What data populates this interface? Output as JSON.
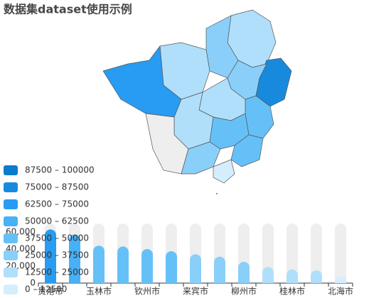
{
  "chart_data": {
    "type": "bar",
    "title": "数据集dataset使用示例",
    "categories": [
      "贵港市",
      null,
      "玉林市",
      null,
      "钦州市",
      null,
      "来宾市",
      null,
      "柳州市",
      null,
      "桂林市",
      null,
      "北海市"
    ],
    "values": [
      63000,
      57000,
      44000,
      43000,
      40000,
      37500,
      34000,
      31000,
      25000,
      19000,
      16000,
      15000,
      7500
    ],
    "ylim": [
      0,
      70000
    ],
    "yticks": [
      0,
      {
        "value": 20000,
        "label": "20,000"
      },
      {
        "value": 40000,
        "label": "40,000"
      },
      {
        "value": 60000,
        "label": "60,000"
      }
    ],
    "background_bar_color": "#eeeeee",
    "visual_map": [
      {
        "min": 87500,
        "max": 100000,
        "label": "87500 – 100000",
        "color": "#0b7ccb"
      },
      {
        "min": 75000,
        "max": 87500,
        "label": "75000 – 87500",
        "color": "#178ade"
      },
      {
        "min": 62500,
        "max": 75000,
        "label": "62500 – 75000",
        "color": "#279cf2"
      },
      {
        "min": 50000,
        "max": 62500,
        "label": "50000 – 62500",
        "color": "#47b0f6"
      },
      {
        "min": 37500,
        "max": 50000,
        "label": "37500 – 50000",
        "color": "#66c0f8"
      },
      {
        "min": 25000,
        "max": 37500,
        "label": "25000 – 37500",
        "color": "#8acff9"
      },
      {
        "min": 12500,
        "max": 25000,
        "label": "12500 – 25000",
        "color": "#b0dffb"
      },
      {
        "min": 0,
        "max": 12500,
        "label": "0 – 12500",
        "color": "#d5eefd"
      }
    ]
  }
}
